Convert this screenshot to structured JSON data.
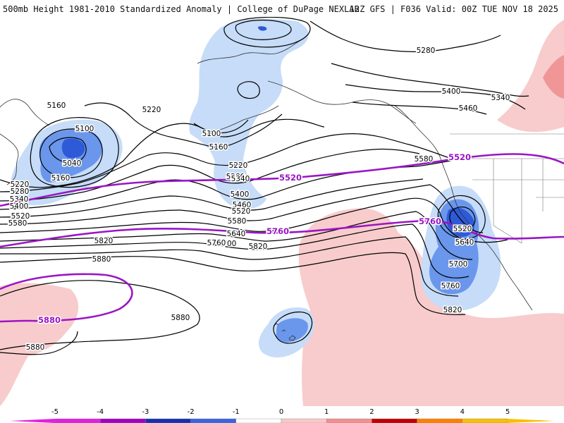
{
  "header": {
    "title": "500mb Height 1981-2010 Standardized Anomaly | College of DuPage NEXLAB",
    "valid": "12Z GFS | F036 Valid: 00Z TUE NOV 18 2025"
  },
  "colorbar": {
    "ticks": [
      "-5",
      "-4",
      "-3",
      "-2",
      "-1",
      "0",
      "1",
      "2",
      "3",
      "4",
      "5"
    ],
    "colors": [
      "#e020e0",
      "#a000c0",
      "#1430b0",
      "#3a64dc",
      "#a8c8f4",
      "#ffffff",
      "#f8c8c8",
      "#f09090",
      "#c00000",
      "#ff8000",
      "#f8c000"
    ]
  },
  "map_colors": {
    "weak_negative": "#c6dcf8",
    "moderate_negative": "#6a96ec",
    "strong_negative": "#2e5ad8",
    "weak_positive": "#f8cccc",
    "moderate_positive": "#f09696",
    "contour": "#000000",
    "highlight_contour": "#9a16c4"
  },
  "contour_labels": [
    {
      "text": "5100"
    },
    {
      "text": "5040"
    },
    {
      "text": "5160"
    },
    {
      "text": "5160"
    },
    {
      "text": "5220"
    },
    {
      "text": "5220"
    },
    {
      "text": "5280"
    },
    {
      "text": "5340"
    },
    {
      "text": "5400"
    },
    {
      "text": "5520"
    },
    {
      "text": "5580"
    },
    {
      "text": "5100"
    },
    {
      "text": "5160"
    },
    {
      "text": "5220"
    },
    {
      "text": "5280"
    },
    {
      "text": "5340"
    },
    {
      "text": "5400"
    },
    {
      "text": "5460"
    },
    {
      "text": "5520"
    },
    {
      "text": "5580"
    },
    {
      "text": "5640"
    },
    {
      "text": "5700"
    },
    {
      "text": "5760"
    },
    {
      "text": "5820"
    },
    {
      "text": "5820"
    },
    {
      "text": "5880"
    },
    {
      "text": "5880"
    },
    {
      "text": "5880"
    },
    {
      "text": "5280"
    },
    {
      "text": "5400"
    },
    {
      "text": "5340"
    },
    {
      "text": "5460"
    },
    {
      "text": "5580"
    },
    {
      "text": "5520"
    },
    {
      "text": "5640"
    },
    {
      "text": "5700"
    },
    {
      "text": "5760"
    },
    {
      "text": "5820"
    }
  ],
  "highlight_labels": [
    {
      "text": "5520"
    },
    {
      "text": "5520"
    },
    {
      "text": "5760"
    },
    {
      "text": "5760"
    },
    {
      "text": "5880"
    }
  ]
}
